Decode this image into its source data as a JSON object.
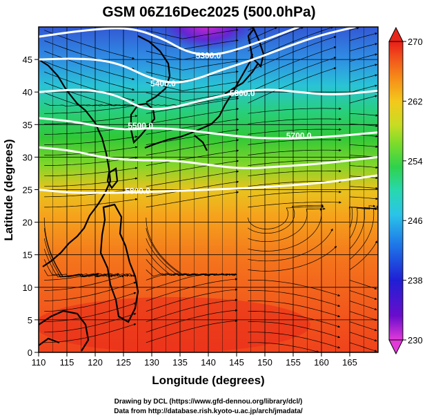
{
  "title": "GSM 06Z16Dec2025 (500.0hPa)",
  "map": {
    "lon_range": [
      110,
      170
    ],
    "lat_range": [
      0,
      50
    ],
    "xlabel": "Longitude (degrees)",
    "ylabel": "Latitude  (degrees)",
    "x_ticks": [
      "110",
      "115",
      "120",
      "125",
      "130",
      "135",
      "140",
      "145",
      "150",
      "155",
      "160",
      "165"
    ],
    "y_ticks": [
      "0",
      "5",
      "10",
      "15",
      "20",
      "25",
      "30",
      "35",
      "40",
      "45"
    ],
    "contours": [
      {
        "label": "5300.0",
        "points": [
          [
            110,
            48.5
          ],
          [
            118,
            49.5
          ],
          [
            126,
            50
          ],
          [
            132,
            48.2
          ],
          [
            136,
            46.2
          ],
          [
            140,
            45.6
          ],
          [
            144,
            46.2
          ],
          [
            150,
            48
          ],
          [
            156,
            50
          ]
        ]
      },
      {
        "label": "5400.0",
        "points": [
          [
            110,
            45
          ],
          [
            118,
            45.2
          ],
          [
            124,
            44.5
          ],
          [
            130,
            42
          ],
          [
            134,
            41.3
          ],
          [
            138,
            42
          ],
          [
            142,
            43.3
          ],
          [
            148,
            45
          ],
          [
            154,
            47
          ],
          [
            160,
            48.8
          ],
          [
            166,
            50
          ]
        ]
      },
      {
        "label": "5500.0",
        "points": [
          [
            110,
            40
          ],
          [
            118,
            40.5
          ],
          [
            124,
            39.5
          ],
          [
            128,
            37.5
          ],
          [
            132,
            37.3
          ],
          [
            138,
            38.5
          ],
          [
            144,
            39.8
          ],
          [
            150,
            40.5
          ],
          [
            156,
            40
          ],
          [
            162,
            39.5
          ],
          [
            170,
            40.2
          ]
        ]
      },
      {
        "label": "5600.0",
        "points": [
          [
            110,
            36
          ],
          [
            116,
            35.5
          ],
          [
            122,
            34.5
          ],
          [
            126,
            34.2
          ],
          [
            130,
            34.5
          ],
          [
            136,
            34.2
          ],
          [
            142,
            33.5
          ],
          [
            150,
            32.8
          ],
          [
            160,
            33
          ],
          [
            170,
            33.8
          ]
        ]
      },
      {
        "label": "5700.0",
        "points": [
          [
            110,
            31.5
          ],
          [
            116,
            31
          ],
          [
            122,
            29.8
          ],
          [
            128,
            29.5
          ],
          [
            134,
            29.5
          ],
          [
            140,
            28.8
          ],
          [
            146,
            28.2
          ],
          [
            152,
            28.5
          ],
          [
            160,
            29
          ],
          [
            170,
            30
          ]
        ]
      },
      {
        "label": "5800.0",
        "points": [
          [
            110,
            25
          ],
          [
            116,
            24.5
          ],
          [
            122,
            24.5
          ],
          [
            128,
            24.6
          ],
          [
            134,
            24.8
          ],
          [
            140,
            25
          ],
          [
            146,
            25.2
          ],
          [
            154,
            25.6
          ],
          [
            162,
            26.2
          ],
          [
            170,
            27.2
          ]
        ]
      }
    ],
    "contour_label_positions": [
      [
        140,
        45.6
      ],
      [
        132,
        41.3
      ],
      [
        128,
        34.8
      ],
      [
        146,
        39.8
      ],
      [
        156,
        33.3
      ],
      [
        127.5,
        24.8
      ]
    ]
  },
  "colorbar": {
    "min": 230,
    "max": 270,
    "tick_labels": [
      "270",
      "262",
      "254",
      "246",
      "238",
      "230"
    ],
    "tick_values": [
      270,
      262,
      254,
      246,
      238,
      230
    ],
    "colors": [
      "#e23ad8",
      "#6a0dcc",
      "#1f1fd4",
      "#1e78e8",
      "#2bc4e8",
      "#28d8b0",
      "#2fd24c",
      "#7fdc2a",
      "#c8dc24",
      "#f4c81c",
      "#f68a18",
      "#f04e1c",
      "#e81e18"
    ]
  },
  "credits": {
    "line1": "Drawing by DCL (https://www.gfd-dennou.org/library/dcl/)",
    "line2": "Data from http://database.rish.kyoto-u.ac.jp/arch/jmadata/"
  }
}
